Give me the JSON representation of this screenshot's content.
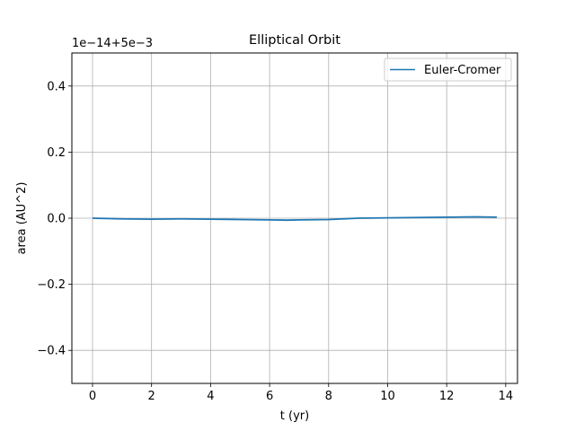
{
  "chart_data": {
    "type": "line",
    "title": "Elliptical Orbit",
    "xlabel": "t (yr)",
    "ylabel": "area (AU^2)",
    "offset_text": "1e−14+5e−3",
    "xlim": [
      -0.7,
      14.4
    ],
    "ylim": [
      -0.5,
      0.5
    ],
    "xticks": [
      0,
      2,
      4,
      6,
      8,
      10,
      12,
      14
    ],
    "xtick_labels": [
      "0",
      "2",
      "4",
      "6",
      "8",
      "10",
      "12",
      "14"
    ],
    "yticks": [
      -0.4,
      -0.2,
      0.0,
      0.2,
      0.4
    ],
    "ytick_labels": [
      "−0.4",
      "−0.2",
      "0.0",
      "0.2",
      "0.4"
    ],
    "grid": true,
    "legend_position": "top-right",
    "series": [
      {
        "name": "Euler-Cromer",
        "color": "#1f77b4",
        "x": [
          0,
          1,
          2,
          3,
          4,
          5,
          6,
          6.6,
          7,
          8,
          9,
          10,
          11,
          12,
          13,
          13.7
        ],
        "y": [
          0.0,
          -0.002,
          -0.003,
          -0.002,
          -0.003,
          -0.004,
          -0.005,
          -0.006,
          -0.005,
          -0.004,
          0.0,
          0.001,
          0.002,
          0.003,
          0.004,
          0.003
        ]
      }
    ]
  }
}
